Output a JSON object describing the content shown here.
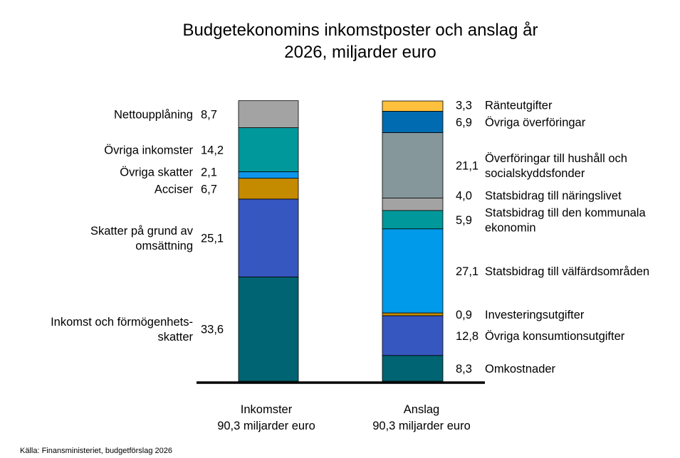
{
  "chart_data": {
    "type": "bar",
    "stacked": true,
    "title_lines": [
      "Budgetekonomins inkomstposter och anslag år",
      "2026, miljarder euro"
    ],
    "source": "Källa: Finansministeriet, budgetförslag 2026",
    "ylim": [
      0,
      90.3
    ],
    "grid": false,
    "legend": "none",
    "columns": [
      {
        "name_lines": [
          "Inkomster",
          "90,3 miljarder euro"
        ],
        "segments": [
          {
            "label_lines": [
              "Inkomst och förmögenhets-",
              "skatter"
            ],
            "value": 33.6,
            "value_label": "33,6",
            "color": "#006472"
          },
          {
            "label_lines": [
              "Skatter på grund av",
              "omsättning"
            ],
            "value": 25.1,
            "value_label": "25,1",
            "color": "#3757C0"
          },
          {
            "label_lines": [
              "Acciser"
            ],
            "value": 6.7,
            "value_label": "6,7",
            "color": "#C48A00"
          },
          {
            "label_lines": [
              "Övriga skatter"
            ],
            "value": 2.1,
            "value_label": "2,1",
            "color": "#0E96EC"
          },
          {
            "label_lines": [
              "Övriga inkomster"
            ],
            "value": 14.2,
            "value_label": "14,2",
            "color": "#00989A"
          },
          {
            "label_lines": [
              "Nettoupplåning"
            ],
            "value": 8.7,
            "value_label": "8,7",
            "color": "#A3A3A3"
          }
        ]
      },
      {
        "name_lines": [
          "Anslag",
          "90,3 miljarder euro"
        ],
        "segments": [
          {
            "label_lines": [
              "Omkostnader"
            ],
            "value": 8.3,
            "value_label": "8,3",
            "color": "#006472"
          },
          {
            "label_lines": [
              "Övriga konsumtionsutgifter"
            ],
            "value": 12.8,
            "value_label": "12,8",
            "color": "#3757C0"
          },
          {
            "label_lines": [
              "Investeringsutgifter"
            ],
            "value": 0.9,
            "value_label": "0,9",
            "color": "#C48A00"
          },
          {
            "label_lines": [
              "Statsbidrag till välfärdsområden"
            ],
            "value": 27.1,
            "value_label": "27,1",
            "color": "#009AEA"
          },
          {
            "label_lines": [
              "Statsbidrag till den kommunala",
              "ekonomin"
            ],
            "value": 5.9,
            "value_label": "5,9",
            "color": "#00989A"
          },
          {
            "label_lines": [
              "Statsbidrag till näringslivet"
            ],
            "value": 4.0,
            "value_label": "4,0",
            "color": "#A3A3A3"
          },
          {
            "label_lines": [
              "Överföringar till hushåll och",
              "socialskyddsfonder"
            ],
            "value": 21.1,
            "value_label": "21,1",
            "color": "#85979B"
          },
          {
            "label_lines": [
              "Övriga överföringar"
            ],
            "value": 6.9,
            "value_label": "6,9",
            "color": "#006BB0"
          },
          {
            "label_lines": [
              "Ränteutgifter"
            ],
            "value": 3.3,
            "value_label": "3,3",
            "color": "#FFC03D"
          }
        ]
      }
    ]
  }
}
